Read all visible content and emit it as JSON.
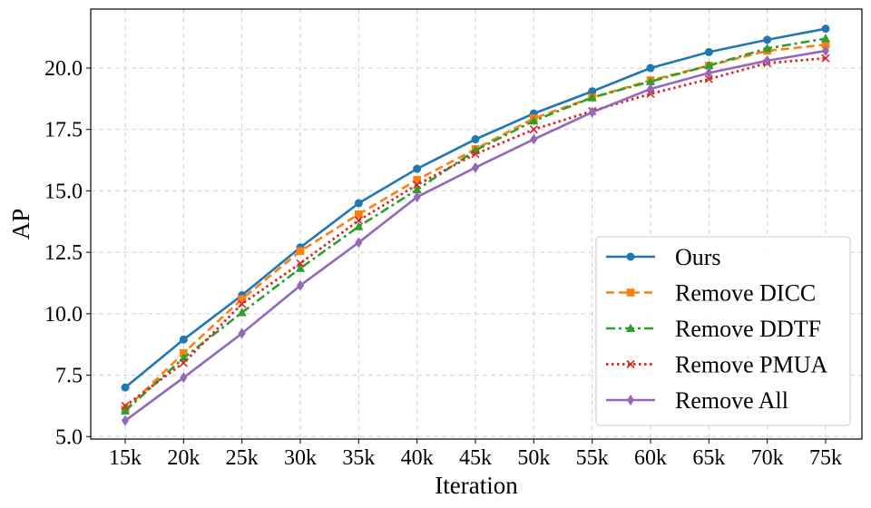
{
  "chart_data": {
    "type": "line",
    "xlabel": "Iteration",
    "ylabel": "AP",
    "categories": [
      "15k",
      "20k",
      "25k",
      "30k",
      "35k",
      "40k",
      "45k",
      "50k",
      "55k",
      "60k",
      "65k",
      "70k",
      "75k"
    ],
    "ylim": [
      4.9,
      22.4
    ],
    "yticks": [
      "5.0",
      "7.5",
      "10.0",
      "12.5",
      "15.0",
      "17.5",
      "20.0"
    ],
    "grid": true,
    "legend_position": "bottom-right",
    "series": [
      {
        "name": "Ours",
        "color": "#1f77b4",
        "line_style": "solid",
        "marker": "circle",
        "values": [
          7.0,
          8.95,
          10.75,
          12.7,
          14.5,
          15.9,
          17.1,
          18.15,
          19.05,
          20.0,
          20.65,
          21.15,
          21.6
        ]
      },
      {
        "name": "Remove DICC",
        "color": "#ff7f0e",
        "line_style": "dashed",
        "marker": "square",
        "values": [
          6.1,
          8.4,
          10.6,
          12.55,
          14.05,
          15.45,
          16.7,
          17.95,
          18.8,
          19.5,
          20.1,
          20.7,
          20.95
        ]
      },
      {
        "name": "Remove DDTF",
        "color": "#2ca02c",
        "line_style": "dashdot",
        "marker": "triangle",
        "values": [
          6.05,
          8.2,
          10.05,
          11.85,
          13.55,
          15.05,
          16.65,
          17.85,
          18.8,
          19.45,
          20.1,
          20.8,
          21.2
        ]
      },
      {
        "name": "Remove PMUA",
        "color": "#d62728",
        "line_style": "dotted",
        "marker": "x",
        "values": [
          6.25,
          8.0,
          10.4,
          12.05,
          13.8,
          15.25,
          16.5,
          17.5,
          18.25,
          18.95,
          19.55,
          20.2,
          20.4
        ]
      },
      {
        "name": "Remove All",
        "color": "#9467bd",
        "line_style": "solid",
        "marker": "diamond",
        "values": [
          5.65,
          7.4,
          9.2,
          11.15,
          12.9,
          14.75,
          15.95,
          17.1,
          18.2,
          19.15,
          19.8,
          20.3,
          20.7
        ]
      }
    ]
  }
}
